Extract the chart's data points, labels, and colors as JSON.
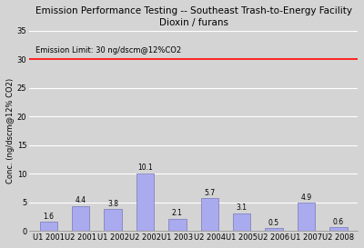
{
  "title_line1": "Emission Performance Testing -- Southeast Trash-to-Energy Facility",
  "title_line2": "Dioxin / furans",
  "categories": [
    "U1 2001",
    "U2 2001",
    "U1 2002",
    "U2 2002",
    "U1 2003",
    "U2 2004",
    "U1 2005",
    "U2 2006",
    "U1 2007",
    "U2 2008"
  ],
  "values": [
    1.6,
    4.4,
    3.8,
    10.1,
    2.1,
    5.7,
    3.1,
    0.5,
    4.9,
    0.6
  ],
  "bar_color": "#aaaaee",
  "bar_edgecolor": "#7777bb",
  "emission_limit": 30,
  "emission_limit_color": "#ff0000",
  "emission_limit_label": "Emission Limit: 30 ng/dscm@12%CO2",
  "ylabel": "Conc. (ng/dscm@12% CO2)",
  "ylim": [
    0,
    35
  ],
  "yticks": [
    0,
    5,
    10,
    15,
    20,
    25,
    30,
    35
  ],
  "background_color": "#d4d4d4",
  "title_fontsize": 7.5,
  "axis_fontsize": 6,
  "label_fontsize": 5.5,
  "tick_fontsize": 6,
  "grid_color": "#ffffff",
  "emission_label_fontsize": 6
}
